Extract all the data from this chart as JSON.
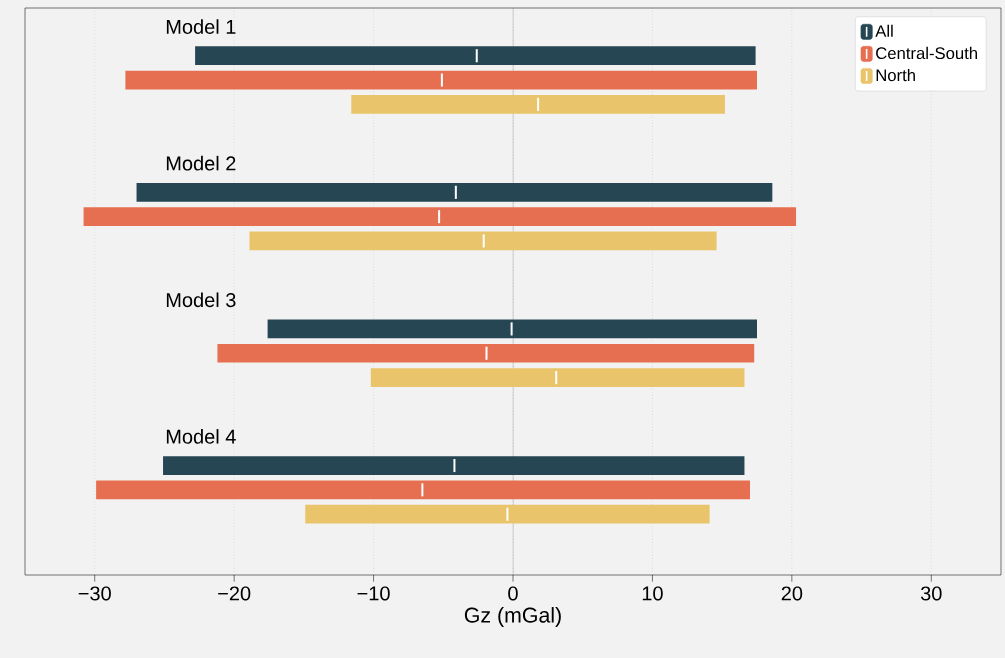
{
  "chart_data": {
    "type": "box",
    "orientation": "horizontal",
    "xlabel": "Gz (mGal)",
    "categories": [
      "Model 1",
      "Model 2",
      "Model 3",
      "Model 4"
    ],
    "series": [
      {
        "name": "All",
        "color": "#264653",
        "boxes": [
          {
            "low": -22.8,
            "q1": -22.8,
            "median": -2.6,
            "q3": 17.4,
            "high": 17.4
          },
          {
            "low": -27.0,
            "q1": -27.0,
            "median": -4.1,
            "q3": 18.6,
            "high": 18.6
          },
          {
            "low": -17.6,
            "q1": -17.6,
            "median": -0.1,
            "q3": 17.5,
            "high": 17.5
          },
          {
            "low": -25.1,
            "q1": -25.1,
            "median": -4.2,
            "q3": 16.6,
            "high": 16.6
          }
        ]
      },
      {
        "name": "Central-South",
        "color": "#e76f51",
        "boxes": [
          {
            "low": -27.8,
            "q1": -27.8,
            "median": -5.1,
            "q3": 17.5,
            "high": 17.5
          },
          {
            "low": -30.8,
            "q1": -30.8,
            "median": -5.3,
            "q3": 20.3,
            "high": 20.3
          },
          {
            "low": -21.2,
            "q1": -21.2,
            "median": -1.9,
            "q3": 17.3,
            "high": 17.3
          },
          {
            "low": -29.9,
            "q1": -29.9,
            "median": -6.5,
            "q3": 17.0,
            "high": 17.0
          }
        ]
      },
      {
        "name": "North",
        "color": "#e9c46a",
        "boxes": [
          {
            "low": -11.6,
            "q1": -11.6,
            "median": 1.8,
            "q3": 15.2,
            "high": 15.2
          },
          {
            "low": -18.9,
            "q1": -18.9,
            "median": -2.1,
            "q3": 14.6,
            "high": 14.6
          },
          {
            "low": -10.2,
            "q1": -10.2,
            "median": 3.1,
            "q3": 16.6,
            "high": 16.6
          },
          {
            "low": -14.9,
            "q1": -14.9,
            "median": -0.4,
            "q3": 14.1,
            "high": 14.1
          }
        ]
      }
    ],
    "xlim": [
      -35,
      35
    ],
    "xticks": [
      {
        "value": -30,
        "label": "−30"
      },
      {
        "value": -20,
        "label": "−20"
      },
      {
        "value": -10,
        "label": "−10"
      },
      0,
      10,
      20,
      30
    ],
    "ref_lines": [
      {
        "axis": "x",
        "value": 0,
        "color": "#888888"
      }
    ],
    "grid": "x",
    "legend": "top right",
    "tick_labels": "x"
  }
}
